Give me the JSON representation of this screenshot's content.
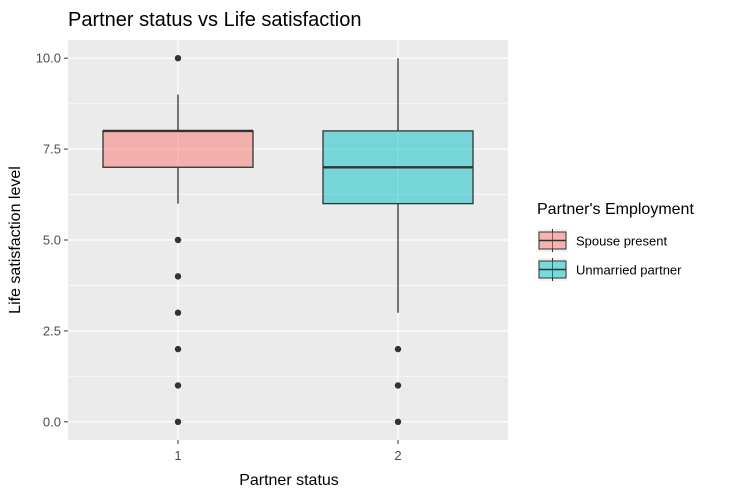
{
  "chart_data": {
    "type": "boxplot",
    "title": "Partner status vs Life satisfaction",
    "xlabel": "Partner status",
    "ylabel": "Life satisfaction level",
    "ylim": [
      -0.5,
      10.5
    ],
    "yticks": [
      0.0,
      2.5,
      5.0,
      7.5,
      10.0
    ],
    "ytick_labels": [
      "0.0",
      "2.5",
      "5.0",
      "7.5",
      "10.0"
    ],
    "grid": true,
    "legend": {
      "title": "Partner's Employment",
      "placement": "right",
      "entries": [
        {
          "label": "Spouse present",
          "color": "#F8766D"
        },
        {
          "label": "Unmarried partner",
          "color": "#00BFC4"
        }
      ]
    },
    "categories": [
      "1",
      "2"
    ],
    "boxes": [
      {
        "category": "1",
        "group": "Spouse present",
        "whisker_low": 6,
        "q1": 7,
        "median": 8,
        "q3": 8,
        "whisker_high": 9,
        "outliers": [
          10,
          5,
          4,
          3,
          2,
          1,
          0
        ]
      },
      {
        "category": "2",
        "group": "Unmarried partner",
        "whisker_low": 3,
        "q1": 6,
        "median": 7,
        "q3": 8,
        "whisker_high": 10,
        "outliers": [
          2,
          1,
          0
        ]
      }
    ],
    "colors": {
      "panel": "#EBEBEB",
      "grid": "#FFFFFF",
      "box_alpha": 0.5,
      "outlier": "#333333"
    }
  }
}
